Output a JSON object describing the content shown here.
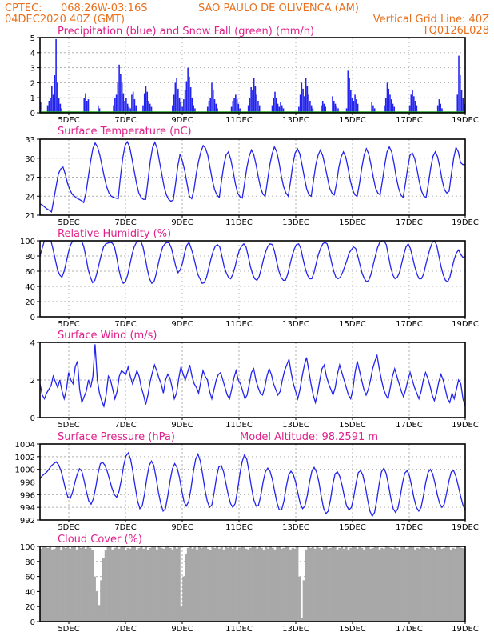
{
  "header": {
    "line1_left": "CPTEC:",
    "line1_coords": "068:26W-03:16S",
    "line1_station": "SAO PAULO DE OLIVENCA (AM)",
    "line2_date": "04DEC2020 40Z (GMT)",
    "line2_grid": "Vertical Grid Line: 40Z",
    "line3_code": "TQ0126L028"
  },
  "colors": {
    "series": "#2323ee",
    "snow": "#1aa01a",
    "cloud": "#a8a8a8",
    "title": "#e0208a",
    "header": "#e8701e"
  },
  "x_tick_labels": [
    "5DEC",
    "7DEC",
    "9DEC",
    "11DEC",
    "13DEC",
    "15DEC",
    "17DEC",
    "19DEC"
  ],
  "chart_data": [
    {
      "id": "precip",
      "type": "bar",
      "title": "Precipitation (blue) and Snow Fall (green) (mm/h)",
      "ylim": [
        0,
        5
      ],
      "yticks": [
        0,
        1,
        2,
        3,
        4,
        5
      ],
      "series": [
        {
          "name": "Precipitation",
          "values": [
            0.7,
            0,
            0,
            0,
            0,
            0.5,
            0.8,
            1.0,
            1.8,
            1.2,
            2.5,
            4.9,
            2.0,
            1.0,
            0.6,
            0.3,
            0,
            0,
            0,
            0,
            0,
            0,
            0,
            0,
            0,
            0,
            0,
            0,
            0,
            0,
            0,
            1.0,
            1.3,
            0.8,
            0.9,
            0,
            0,
            0,
            0,
            0,
            0,
            0.5,
            0.3,
            0,
            0,
            0,
            0,
            0,
            0,
            0,
            0,
            0,
            0.5,
            1.0,
            1.2,
            2.0,
            3.2,
            2.6,
            2.0,
            1.3,
            0.8,
            1.0,
            0.6,
            0.4,
            0.3,
            1.2,
            1.4,
            0.9,
            0.5,
            0,
            0,
            0,
            0,
            0.5,
            1.3,
            1.8,
            1.4,
            0.8,
            0.6,
            0.4,
            0,
            0,
            0,
            0,
            0,
            0,
            0,
            0,
            0,
            0,
            0,
            0,
            0,
            0,
            0.5,
            1.2,
            2.0,
            2.3,
            1.6,
            1.0,
            0.7,
            0.4,
            0.9,
            1.5,
            2.1,
            3.0,
            2.4,
            1.7,
            1.0,
            0.5,
            0.3,
            0,
            0,
            0,
            0,
            0,
            0,
            0,
            0,
            0.4,
            0.8,
            1.0,
            2.0,
            1.5,
            0.9,
            0.6,
            0.3,
            0,
            0,
            0,
            0,
            0,
            0,
            0,
            0,
            0,
            0.4,
            0.8,
            1.0,
            1.2,
            0.9,
            0.6,
            0.3,
            0,
            0,
            0,
            0,
            0,
            0.5,
            1.0,
            1.7,
            1.5,
            2.3,
            1.8,
            1.2,
            0.8,
            0.5,
            0,
            0,
            0,
            0,
            0,
            0,
            0,
            0,
            0.5,
            1.0,
            1.4,
            1.0,
            0.6,
            0.4,
            0.7,
            0.5,
            0.3,
            0,
            0,
            0,
            0,
            0,
            0,
            0,
            0,
            0,
            0,
            0.4,
            1.2,
            2.0,
            1.6,
            1.1,
            2.3,
            1.8,
            1.2,
            0.8,
            0.5,
            0.3,
            0,
            0,
            0,
            0,
            0,
            0.5,
            0.8,
            0.6,
            0.4,
            0,
            0,
            0,
            0,
            1.1,
            0.8,
            0.6,
            0.4,
            0.3,
            0,
            0,
            0,
            0,
            0,
            0.3,
            2.8,
            2.3,
            1.5,
            1.0,
            0.8,
            1.2,
            0.9,
            0.6,
            0,
            0,
            0,
            0,
            0,
            0,
            0,
            0,
            0,
            0.7,
            0.5,
            0.3,
            0,
            0,
            0,
            0,
            0,
            0,
            0.5,
            1.0,
            2.0,
            1.6,
            1.2,
            0.9,
            0.6,
            0.4,
            0,
            0,
            0,
            0,
            0,
            0,
            0,
            0,
            0,
            0,
            0.5,
            1.2,
            1.5,
            1.1,
            0.8,
            0.5,
            0,
            0,
            0,
            0,
            0,
            0,
            0,
            0,
            0,
            0,
            0,
            0,
            0,
            0,
            0.5,
            0.9,
            0.6,
            0.3,
            0,
            0,
            0,
            0,
            0,
            0,
            0,
            0,
            0,
            0,
            1.2,
            3.8,
            2.5,
            1.5,
            1.0,
            0.6
          ]
        },
        {
          "name": "Snow Fall",
          "values": [
            0
          ]
        }
      ]
    },
    {
      "id": "temp",
      "type": "line",
      "title": "Surface Temperature (nC)",
      "ylim": [
        21,
        33
      ],
      "yticks": [
        21,
        24,
        27,
        30,
        33
      ],
      "values": [
        22.8,
        22.6,
        22.3,
        22.0,
        21.8,
        21.5,
        23.5,
        25.5,
        27.5,
        28.3,
        28.6,
        27.5,
        26.0,
        25.0,
        24.3,
        24.0,
        23.7,
        23.5,
        23.3,
        23.0,
        24.5,
        27.0,
        29.5,
        31.5,
        32.4,
        31.8,
        30.5,
        28.8,
        27.0,
        25.5,
        24.5,
        24.0,
        23.8,
        23.7,
        23.6,
        27.0,
        30.0,
        32.0,
        32.6,
        31.8,
        30.0,
        28.0,
        26.0,
        24.5,
        23.8,
        23.5,
        23.5,
        26.5,
        29.5,
        31.7,
        32.5,
        31.5,
        29.5,
        27.5,
        25.5,
        24.2,
        23.5,
        23.2,
        23.4,
        26.0,
        28.8,
        30.7,
        29.5,
        28.0,
        26.0,
        24.0,
        23.6,
        25.0,
        27.5,
        29.5,
        31.0,
        32.0,
        31.6,
        30.5,
        28.5,
        26.5,
        25.0,
        24.2,
        23.8,
        26.5,
        29.0,
        30.5,
        31.0,
        29.8,
        28.0,
        26.0,
        24.5,
        23.9,
        23.7,
        26.0,
        28.5,
        30.3,
        31.3,
        30.6,
        29.0,
        27.0,
        25.3,
        24.3,
        24.0,
        26.5,
        29.0,
        30.7,
        31.8,
        31.0,
        29.3,
        27.2,
        25.5,
        24.5,
        24.0,
        26.3,
        29.0,
        30.8,
        31.5,
        30.7,
        29.0,
        27.0,
        25.2,
        24.2,
        24.0,
        26.5,
        29.0,
        30.5,
        31.3,
        30.4,
        28.8,
        27.0,
        25.3,
        24.5,
        24.2,
        26.0,
        28.5,
        30.2,
        31.0,
        30.2,
        28.5,
        26.5,
        25.0,
        24.2,
        24.0,
        26.0,
        28.5,
        30.5,
        31.5,
        30.7,
        29.0,
        27.0,
        25.3,
        24.5,
        24.2,
        26.5,
        29.0,
        31.0,
        31.8,
        31.0,
        29.2,
        27.0,
        25.3,
        24.2,
        23.8,
        26.0,
        28.5,
        30.5,
        30.8,
        30.0,
        28.3,
        26.3,
        24.8,
        24.0,
        23.8,
        26.0,
        28.5,
        30.3,
        31.0,
        30.2,
        28.5,
        26.5,
        25.0,
        24.5,
        24.8,
        27.5,
        30.0,
        31.7,
        31.0,
        29.3,
        29.0,
        29.0
      ]
    },
    {
      "id": "rh",
      "type": "line",
      "title": "Relative Humidity (%)",
      "ylim": [
        0,
        100
      ],
      "yticks": [
        0,
        20,
        40,
        60,
        80,
        100
      ],
      "values": [
        80,
        90,
        100,
        100,
        100,
        100,
        88,
        75,
        62,
        55,
        52,
        60,
        72,
        85,
        95,
        100,
        100,
        100,
        100,
        100,
        92,
        78,
        62,
        52,
        45,
        48,
        58,
        70,
        82,
        92,
        96,
        97,
        98,
        97,
        92,
        78,
        62,
        50,
        44,
        46,
        55,
        68,
        82,
        92,
        98,
        100,
        100,
        92,
        78,
        62,
        50,
        44,
        46,
        56,
        70,
        82,
        92,
        96,
        98,
        97,
        90,
        78,
        66,
        58,
        62,
        70,
        84,
        94,
        98,
        90,
        80,
        68,
        56,
        50,
        44,
        45,
        52,
        64,
        76,
        86,
        93,
        95,
        92,
        80,
        66,
        58,
        52,
        50,
        56,
        66,
        78,
        88,
        93,
        96,
        92,
        80,
        66,
        56,
        50,
        48,
        53,
        64,
        76,
        86,
        93,
        96,
        95,
        86,
        72,
        60,
        52,
        48,
        48,
        56,
        68,
        80,
        89,
        95,
        96,
        90,
        76,
        64,
        55,
        50,
        50,
        58,
        70,
        82,
        90,
        96,
        98,
        96,
        85,
        72,
        60,
        52,
        50,
        52,
        58,
        66,
        74,
        84,
        88,
        92,
        90,
        80,
        68,
        57,
        50,
        46,
        48,
        56,
        68,
        80,
        91,
        98,
        100,
        100,
        95,
        80,
        65,
        55,
        50,
        52,
        58,
        70,
        82,
        92,
        96,
        90,
        78,
        66,
        56,
        50,
        50,
        56,
        68,
        80,
        90,
        98,
        100,
        94,
        80,
        66,
        55,
        48,
        46,
        52,
        64,
        76,
        84,
        88,
        82,
        78,
        80
      ]
    },
    {
      "id": "wind",
      "type": "line",
      "title": "Surface Wind (m/s)",
      "ylim": [
        0,
        4
      ],
      "yticks": [
        0,
        2,
        4
      ],
      "values": [
        1.8,
        1.2,
        1.0,
        1.3,
        1.5,
        1.7,
        2.2,
        1.9,
        1.6,
        2.0,
        1.4,
        1.0,
        1.5,
        2.4,
        2.0,
        1.8,
        2.7,
        3.0,
        1.5,
        0.8,
        1.1,
        1.4,
        2.0,
        1.6,
        2.2,
        3.9,
        2.0,
        1.3,
        0.9,
        0.6,
        1.2,
        2.2,
        2.0,
        1.5,
        1.0,
        1.4,
        2.2,
        2.5,
        2.4,
        2.3,
        2.7,
        2.2,
        1.8,
        2.1,
        2.5,
        2.2,
        1.6,
        1.2,
        0.7,
        1.2,
        1.9,
        2.4,
        2.8,
        2.5,
        2.1,
        1.8,
        1.3,
        2.0,
        2.3,
        2.1,
        1.6,
        1.0,
        1.3,
        2.1,
        2.7,
        2.3,
        2.0,
        2.4,
        2.8,
        2.2,
        1.8,
        1.6,
        1.3,
        1.9,
        2.5,
        2.2,
        2.0,
        1.4,
        1.0,
        1.5,
        2.0,
        2.3,
        2.4,
        2.0,
        1.6,
        1.2,
        1.0,
        1.5,
        2.1,
        2.5,
        2.0,
        1.8,
        1.4,
        1.0,
        1.2,
        1.8,
        2.4,
        2.6,
        2.0,
        1.6,
        1.3,
        1.2,
        1.6,
        2.2,
        2.6,
        2.3,
        1.8,
        1.5,
        1.2,
        1.4,
        2.0,
        2.5,
        2.8,
        3.1,
        2.4,
        1.8,
        1.4,
        1.0,
        1.5,
        2.2,
        2.8,
        3.2,
        2.5,
        1.8,
        1.2,
        0.8,
        1.3,
        2.0,
        2.6,
        2.8,
        2.2,
        1.8,
        1.5,
        1.2,
        1.6,
        2.3,
        2.8,
        2.4,
        2.0,
        1.6,
        1.2,
        1.0,
        1.5,
        2.4,
        3.0,
        2.5,
        2.0,
        1.5,
        1.2,
        1.5,
        2.0,
        2.6,
        3.0,
        3.3,
        2.6,
        2.0,
        1.5,
        1.2,
        1.0,
        1.6,
        2.2,
        2.6,
        2.2,
        1.8,
        1.4,
        1.1,
        1.5,
        2.0,
        2.4,
        2.0,
        1.6,
        1.3,
        1.0,
        1.4,
        2.0,
        2.4,
        2.1,
        1.7,
        1.2,
        0.9,
        1.3,
        1.9,
        2.3,
        2.0,
        1.5,
        1.0,
        0.8,
        1.3,
        1.0,
        1.5,
        2.0,
        1.8,
        1.0,
        0.6
      ]
    },
    {
      "id": "pres",
      "type": "line",
      "title": "Surface Pressure (hPa)",
      "annotation": "Model Altitude: 98.2591 m",
      "ylim": [
        992,
        1004
      ],
      "yticks": [
        992,
        994,
        996,
        998,
        1000,
        1002,
        1004
      ],
      "values": [
        998.5,
        999.0,
        999.3,
        999.6,
        1000.1,
        1000.6,
        1000.9,
        1001.2,
        1000.7,
        999.8,
        998.4,
        996.8,
        995.6,
        995.4,
        996.4,
        997.9,
        999.2,
        1000.1,
        999.7,
        998.2,
        996.5,
        995.0,
        994.5,
        995.4,
        997.2,
        999.4,
        1000.9,
        1001.1,
        1000.6,
        999.6,
        998.3,
        997.0,
        996.0,
        995.6,
        996.5,
        998.3,
        1000.6,
        1002.1,
        1002.6,
        1001.6,
        999.6,
        997.2,
        995.0,
        993.8,
        994.2,
        996.1,
        998.6,
        1000.6,
        1001.3,
        1000.6,
        998.6,
        996.3,
        994.6,
        993.4,
        993.8,
        995.8,
        998.2,
        1000.1,
        1000.9,
        1000.3,
        998.8,
        996.7,
        994.9,
        994.2,
        994.9,
        997.0,
        999.6,
        1001.6,
        1002.4,
        1001.3,
        999.2,
        996.8,
        995.0,
        994.0,
        994.4,
        996.4,
        998.8,
        1000.4,
        1000.6,
        999.6,
        997.8,
        996.0,
        994.6,
        994.0,
        994.6,
        996.6,
        999.2,
        1001.2,
        1002.3,
        1001.6,
        999.6,
        997.2,
        995.2,
        994.2,
        994.3,
        995.8,
        998.0,
        999.6,
        1000.2,
        999.7,
        998.4,
        996.5,
        994.7,
        993.6,
        993.6,
        995.0,
        997.3,
        999.1,
        999.7,
        999.2,
        998.0,
        996.2,
        994.6,
        993.8,
        994.2,
        995.8,
        998.0,
        999.7,
        1000.3,
        999.6,
        998.0,
        995.8,
        993.9,
        993.0,
        993.4,
        995.2,
        997.6,
        999.3,
        999.6,
        998.9,
        997.5,
        995.7,
        994.2,
        993.6,
        994.0,
        995.6,
        997.8,
        999.5,
        999.8,
        999.0,
        997.3,
        995.2,
        993.4,
        992.6,
        993.2,
        995.2,
        997.7,
        999.6,
        1000.2,
        999.3,
        997.5,
        995.4,
        993.8,
        993.2,
        993.8,
        995.6,
        997.8,
        999.4,
        999.8,
        999.0,
        997.3,
        995.4,
        994.0,
        993.4,
        994.0,
        995.8,
        997.9,
        999.5,
        1000.0,
        999.3,
        997.8,
        996.0,
        994.6,
        994.0,
        994.5,
        996.2,
        998.2,
        999.6,
        999.8,
        998.9,
        997.4,
        995.8,
        994.4,
        993.5
      ]
    },
    {
      "id": "cloud",
      "type": "area",
      "title": "Cloud Cover (%)",
      "ylim": [
        0,
        100
      ],
      "yticks": [
        0,
        20,
        40,
        60,
        80,
        100
      ],
      "values": [
        97,
        100,
        100,
        98,
        99,
        96,
        97,
        100,
        100,
        95,
        99,
        98,
        100,
        97,
        99,
        100,
        96,
        100,
        98,
        99,
        97,
        100,
        98,
        95,
        60,
        40,
        22,
        55,
        85,
        95,
        100,
        99,
        96,
        98,
        100,
        97,
        99,
        100,
        95,
        98,
        97,
        100,
        99,
        96,
        98,
        100,
        97,
        99,
        95,
        98,
        100,
        99,
        96,
        100,
        98,
        97,
        99,
        100,
        98,
        96,
        100,
        97,
        99,
        20,
        60,
        90,
        98,
        100,
        97,
        99,
        96,
        100,
        98,
        99,
        100,
        97,
        95,
        99,
        98,
        100,
        97,
        99,
        96,
        100,
        98,
        99,
        97,
        100,
        95,
        98,
        100,
        99,
        97,
        96,
        98,
        100,
        99,
        97,
        100,
        98,
        95,
        99,
        97,
        100,
        98,
        96,
        99,
        100,
        97,
        98,
        100,
        99,
        96,
        98,
        97,
        100,
        60,
        5,
        55,
        96,
        100,
        98,
        99,
        97,
        100,
        98,
        96,
        99,
        100,
        97,
        98,
        100,
        99,
        96,
        98,
        100,
        97,
        99,
        95,
        98,
        100,
        99,
        97,
        100,
        98,
        96,
        99,
        100,
        97,
        98,
        100,
        99,
        96,
        98,
        97,
        100,
        99,
        98,
        97,
        100,
        98,
        96,
        99,
        100,
        97,
        98,
        100,
        99,
        96,
        98,
        97,
        100,
        99,
        98,
        97,
        100,
        98,
        95,
        99,
        100,
        97,
        98,
        100,
        99,
        96,
        98,
        97,
        100,
        99,
        98,
        97
      ]
    }
  ]
}
